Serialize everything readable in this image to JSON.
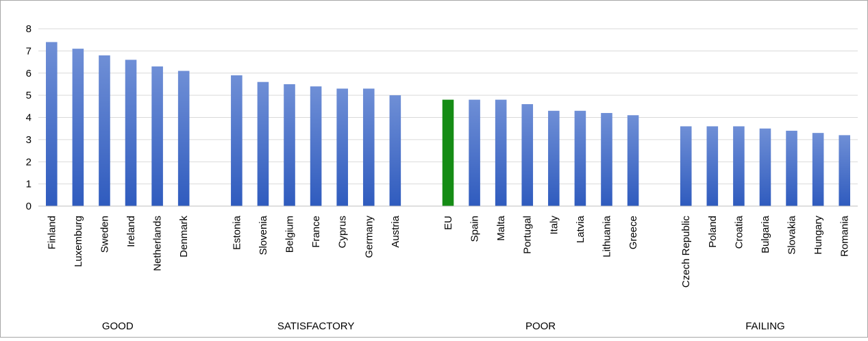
{
  "chart_data": {
    "type": "bar",
    "categories": [
      "Finland",
      "Luxemburg",
      "Sweden",
      "Ireland",
      "Netherlands",
      "Denmark",
      "Estonia",
      "Slovenia",
      "Belgium",
      "France",
      "Cyprus",
      "Germany",
      "Austria",
      "EU",
      "Spain",
      "Malta",
      "Portugal",
      "Italy",
      "Latvia",
      "Lithuania",
      "Greece",
      "Czech Republic",
      "Poland",
      "Croatia",
      "Bulgaria",
      "Slovakia",
      "Hungary",
      "Romania"
    ],
    "values": [
      7.4,
      7.1,
      6.8,
      6.6,
      6.3,
      6.1,
      5.9,
      5.6,
      5.5,
      5.4,
      5.3,
      5.3,
      5.0,
      4.8,
      4.8,
      4.8,
      4.6,
      4.3,
      4.3,
      4.2,
      4.1,
      3.6,
      3.6,
      3.6,
      3.5,
      3.4,
      3.3,
      3.2
    ],
    "groups": [
      {
        "label": "GOOD",
        "count": 6
      },
      {
        "label": "SATISFACTORY",
        "count": 7
      },
      {
        "label": "POOR",
        "count": 8
      },
      {
        "label": "FAILING",
        "count": 7
      }
    ],
    "highlight": {
      "category": "EU",
      "color": "#158C15"
    },
    "bar_color_top": "#6F8FD6",
    "bar_color_bottom": "#2F5BBE",
    "ylim": [
      0,
      8
    ],
    "yticks": [
      0,
      1,
      2,
      3,
      4,
      5,
      6,
      7,
      8
    ],
    "grid": true,
    "title": "",
    "xlabel": "",
    "ylabel": ""
  }
}
